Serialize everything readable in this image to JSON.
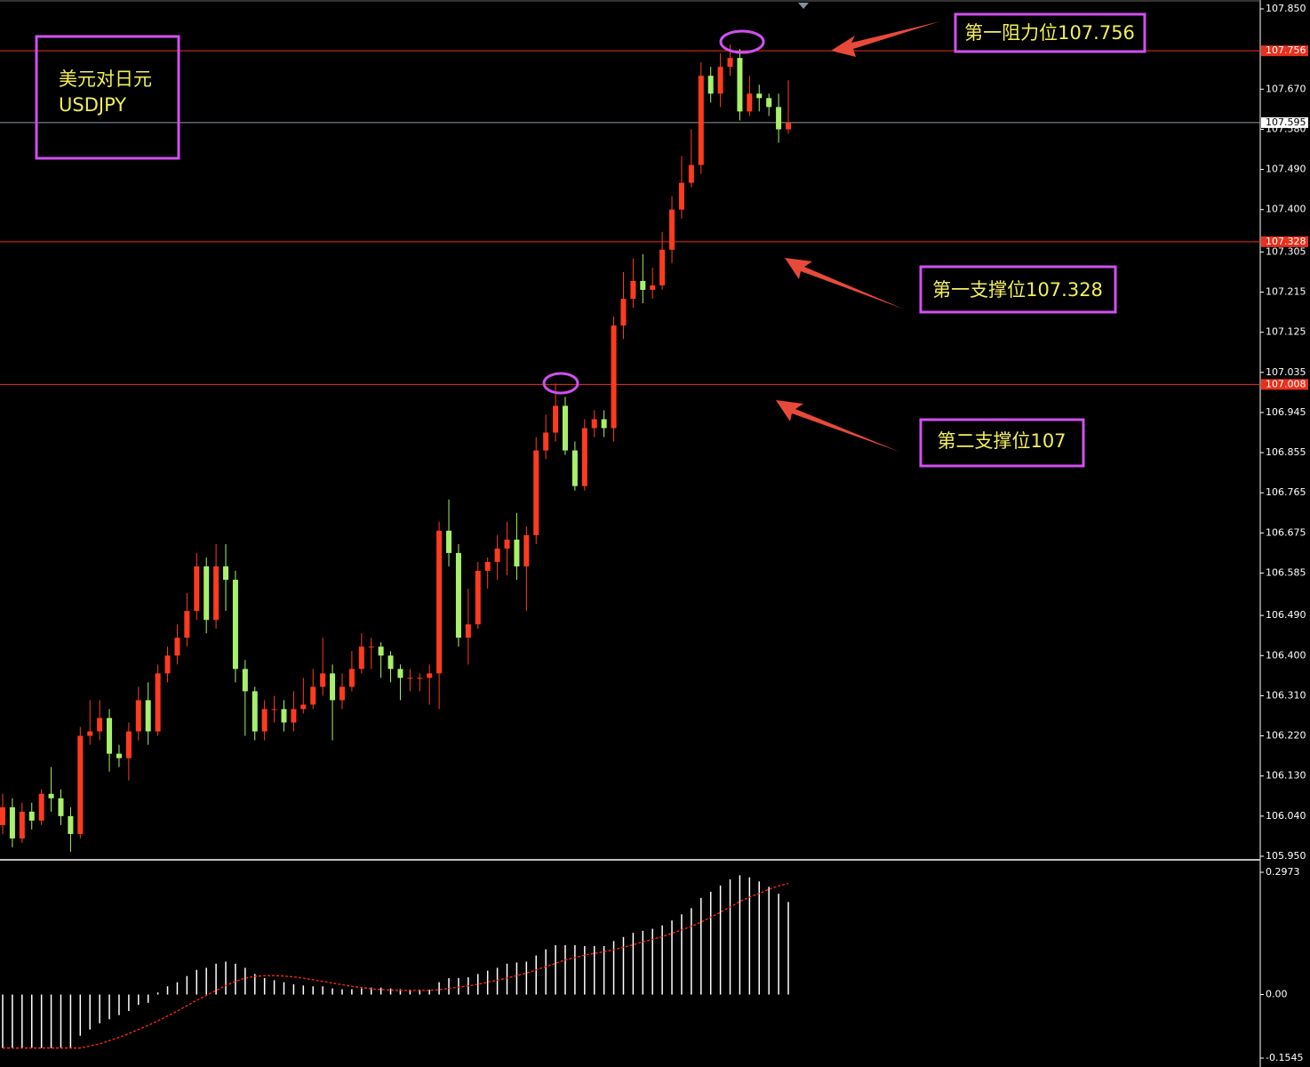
{
  "chart_data": [
    {
      "type": "candlestick",
      "label_box": [
        "美元对日元",
        "USDJPY"
      ],
      "annotations": [
        "第一阻力位107.756",
        "第一支撑位107.328",
        "第二支撑位107"
      ],
      "open": [
        106.02,
        106.06,
        105.99,
        106.05,
        106.03,
        106.09,
        106.08,
        106.04,
        106.0,
        106.22,
        106.23,
        106.26,
        106.18,
        106.17,
        106.23,
        106.3,
        106.23,
        106.36,
        106.4,
        106.44,
        106.5,
        106.6,
        106.48,
        106.6,
        106.57,
        106.37,
        106.32,
        106.23,
        106.28,
        106.28,
        106.25,
        106.28,
        106.29,
        106.33,
        106.36,
        106.3,
        106.33,
        106.37,
        106.42,
        106.42,
        106.4,
        106.37,
        106.35,
        106.35,
        106.35,
        106.36,
        106.68,
        106.63,
        106.44,
        106.47,
        106.59,
        106.61,
        106.64,
        106.66,
        106.6,
        106.67,
        106.86,
        106.9,
        106.96,
        106.86,
        106.78,
        106.91,
        106.93,
        106.91,
        107.14,
        107.2,
        107.24,
        107.22,
        107.23,
        107.31,
        107.4,
        107.46,
        107.5,
        107.7,
        107.66,
        107.72,
        107.74,
        107.62,
        107.66,
        107.65,
        107.63,
        107.58
      ],
      "high": [
        106.09,
        106.08,
        106.07,
        106.07,
        106.1,
        106.15,
        106.1,
        106.06,
        106.24,
        106.3,
        106.3,
        106.28,
        106.2,
        106.25,
        106.33,
        106.34,
        106.38,
        106.42,
        106.47,
        106.54,
        106.63,
        106.62,
        106.65,
        106.65,
        106.59,
        106.39,
        106.33,
        106.3,
        106.31,
        106.3,
        106.32,
        106.35,
        106.37,
        106.44,
        106.38,
        106.36,
        106.41,
        106.45,
        106.44,
        106.43,
        106.41,
        106.38,
        106.37,
        106.36,
        106.38,
        106.7,
        106.75,
        106.65,
        106.55,
        106.61,
        106.62,
        106.67,
        106.7,
        106.72,
        106.69,
        106.89,
        106.94,
        107.01,
        106.98,
        106.88,
        106.93,
        106.95,
        106.95,
        107.16,
        107.26,
        107.29,
        107.3,
        107.27,
        107.35,
        107.43,
        107.52,
        107.58,
        107.73,
        107.72,
        107.75,
        107.77,
        107.76,
        107.7,
        107.68,
        107.66,
        107.66,
        107.69
      ],
      "low": [
        106.0,
        105.97,
        105.98,
        106.01,
        106.02,
        106.05,
        106.02,
        105.96,
        105.99,
        106.2,
        106.21,
        106.14,
        106.15,
        106.12,
        106.21,
        106.2,
        106.22,
        106.34,
        106.38,
        106.42,
        106.48,
        106.45,
        106.46,
        106.5,
        106.34,
        106.22,
        106.21,
        106.21,
        106.25,
        106.23,
        106.23,
        106.27,
        106.28,
        106.31,
        106.21,
        106.28,
        106.32,
        106.36,
        106.37,
        106.35,
        106.34,
        106.3,
        106.32,
        106.32,
        106.29,
        106.28,
        106.6,
        106.42,
        106.38,
        106.46,
        106.55,
        106.57,
        106.58,
        106.57,
        106.5,
        106.65,
        106.84,
        106.88,
        106.85,
        106.77,
        106.77,
        106.89,
        106.89,
        106.88,
        107.11,
        107.18,
        107.19,
        107.2,
        107.22,
        107.28,
        107.38,
        107.45,
        107.48,
        107.64,
        107.63,
        107.7,
        107.6,
        107.61,
        107.62,
        107.61,
        107.55,
        107.57
      ],
      "close": [
        106.06,
        105.99,
        106.05,
        106.03,
        106.09,
        106.08,
        106.04,
        106.0,
        106.22,
        106.23,
        106.26,
        106.18,
        106.17,
        106.23,
        106.3,
        106.23,
        106.36,
        106.4,
        106.44,
        106.5,
        106.6,
        106.48,
        106.6,
        106.57,
        106.37,
        106.32,
        106.23,
        106.28,
        106.28,
        106.25,
        106.28,
        106.29,
        106.33,
        106.36,
        106.3,
        106.33,
        106.37,
        106.42,
        106.42,
        106.4,
        106.37,
        106.35,
        106.35,
        106.35,
        106.36,
        106.68,
        106.63,
        106.44,
        106.47,
        106.59,
        106.61,
        106.64,
        106.66,
        106.6,
        106.67,
        106.86,
        106.9,
        106.96,
        106.86,
        106.78,
        106.91,
        106.93,
        106.91,
        107.14,
        107.2,
        107.24,
        107.22,
        107.23,
        107.31,
        107.4,
        107.46,
        107.5,
        107.7,
        107.66,
        107.72,
        107.74,
        107.62,
        107.66,
        107.65,
        107.63,
        107.58,
        107.595
      ],
      "up_color": "#ff3b1f",
      "down_color": "#a8f06c",
      "levels": [
        {
          "value": 107.756,
          "color": "#e8301c"
        },
        {
          "value": 107.328,
          "color": "#e8301c"
        },
        {
          "value": 107.008,
          "color": "#e8301c"
        },
        {
          "value": 107.595,
          "color": "#8c9aa8"
        }
      ],
      "ylim": [
        105.95,
        107.85
      ],
      "yticks": [
        {
          "value": 105.95,
          "label": "105.950"
        },
        {
          "value": 106.04,
          "label": "106.040"
        },
        {
          "value": 106.13,
          "label": "106.130"
        },
        {
          "value": 106.22,
          "label": "106.220"
        },
        {
          "value": 106.31,
          "label": "106.310"
        },
        {
          "value": 106.4,
          "label": "106.400"
        },
        {
          "value": 106.49,
          "label": "106.490"
        },
        106.585,
        106.675,
        106.765,
        106.855,
        106.945,
        107.035,
        107.125,
        107.215,
        107.305,
        {
          "value": 107.4,
          "label": "107.400"
        },
        {
          "value": 107.49,
          "label": "107.490"
        },
        {
          "value": 107.58,
          "label": "107.580"
        },
        {
          "value": 107.67,
          "label": "107.670"
        },
        {
          "value": 107.85,
          "label": "107.850"
        }
      ]
    },
    {
      "type": "macd",
      "values": [
        -0.13,
        -0.13,
        -0.13,
        -0.13,
        -0.13,
        -0.13,
        -0.13,
        -0.13,
        -0.1,
        -0.085,
        -0.07,
        -0.06,
        -0.05,
        -0.04,
        -0.025,
        -0.02,
        0.005,
        0.02,
        0.03,
        0.045,
        0.06,
        0.065,
        0.075,
        0.08,
        0.075,
        0.065,
        0.05,
        0.04,
        0.035,
        0.03,
        0.025,
        0.022,
        0.02,
        0.02,
        0.015,
        0.013,
        0.013,
        0.015,
        0.017,
        0.017,
        0.015,
        0.013,
        0.012,
        0.012,
        0.012,
        0.03,
        0.04,
        0.04,
        0.042,
        0.05,
        0.058,
        0.065,
        0.075,
        0.078,
        0.08,
        0.095,
        0.11,
        0.12,
        0.12,
        0.12,
        0.118,
        0.118,
        0.118,
        0.13,
        0.14,
        0.15,
        0.155,
        0.16,
        0.168,
        0.18,
        0.195,
        0.21,
        0.235,
        0.25,
        0.265,
        0.28,
        0.29,
        0.285,
        0.275,
        0.262,
        0.245,
        0.225
      ],
      "signal": [
        -0.13,
        -0.13,
        -0.13,
        -0.13,
        -0.13,
        -0.13,
        -0.13,
        -0.13,
        -0.13,
        -0.125,
        -0.12,
        -0.112,
        -0.104,
        -0.095,
        -0.085,
        -0.075,
        -0.064,
        -0.052,
        -0.04,
        -0.027,
        -0.014,
        -0.002,
        0.01,
        0.022,
        0.032,
        0.04,
        0.044,
        0.046,
        0.046,
        0.045,
        0.043,
        0.04,
        0.036,
        0.032,
        0.028,
        0.024,
        0.02,
        0.017,
        0.014,
        0.012,
        0.011,
        0.01,
        0.01,
        0.01,
        0.01,
        0.012,
        0.015,
        0.018,
        0.021,
        0.025,
        0.03,
        0.035,
        0.04,
        0.046,
        0.052,
        0.06,
        0.068,
        0.076,
        0.084,
        0.09,
        0.096,
        0.1,
        0.104,
        0.109,
        0.115,
        0.121,
        0.128,
        0.134,
        0.141,
        0.149,
        0.157,
        0.166,
        0.176,
        0.188,
        0.2,
        0.213,
        0.226,
        0.237,
        0.246,
        0.256,
        0.264,
        0.27
      ],
      "color": "#ffffff",
      "signal_color": "#ff2a1a",
      "ylim": [
        -0.1545,
        0.2973
      ],
      "yticks": [
        -0.1545,
        {
          "value": 0,
          "label": "0.00"
        },
        0.2973
      ]
    }
  ]
}
